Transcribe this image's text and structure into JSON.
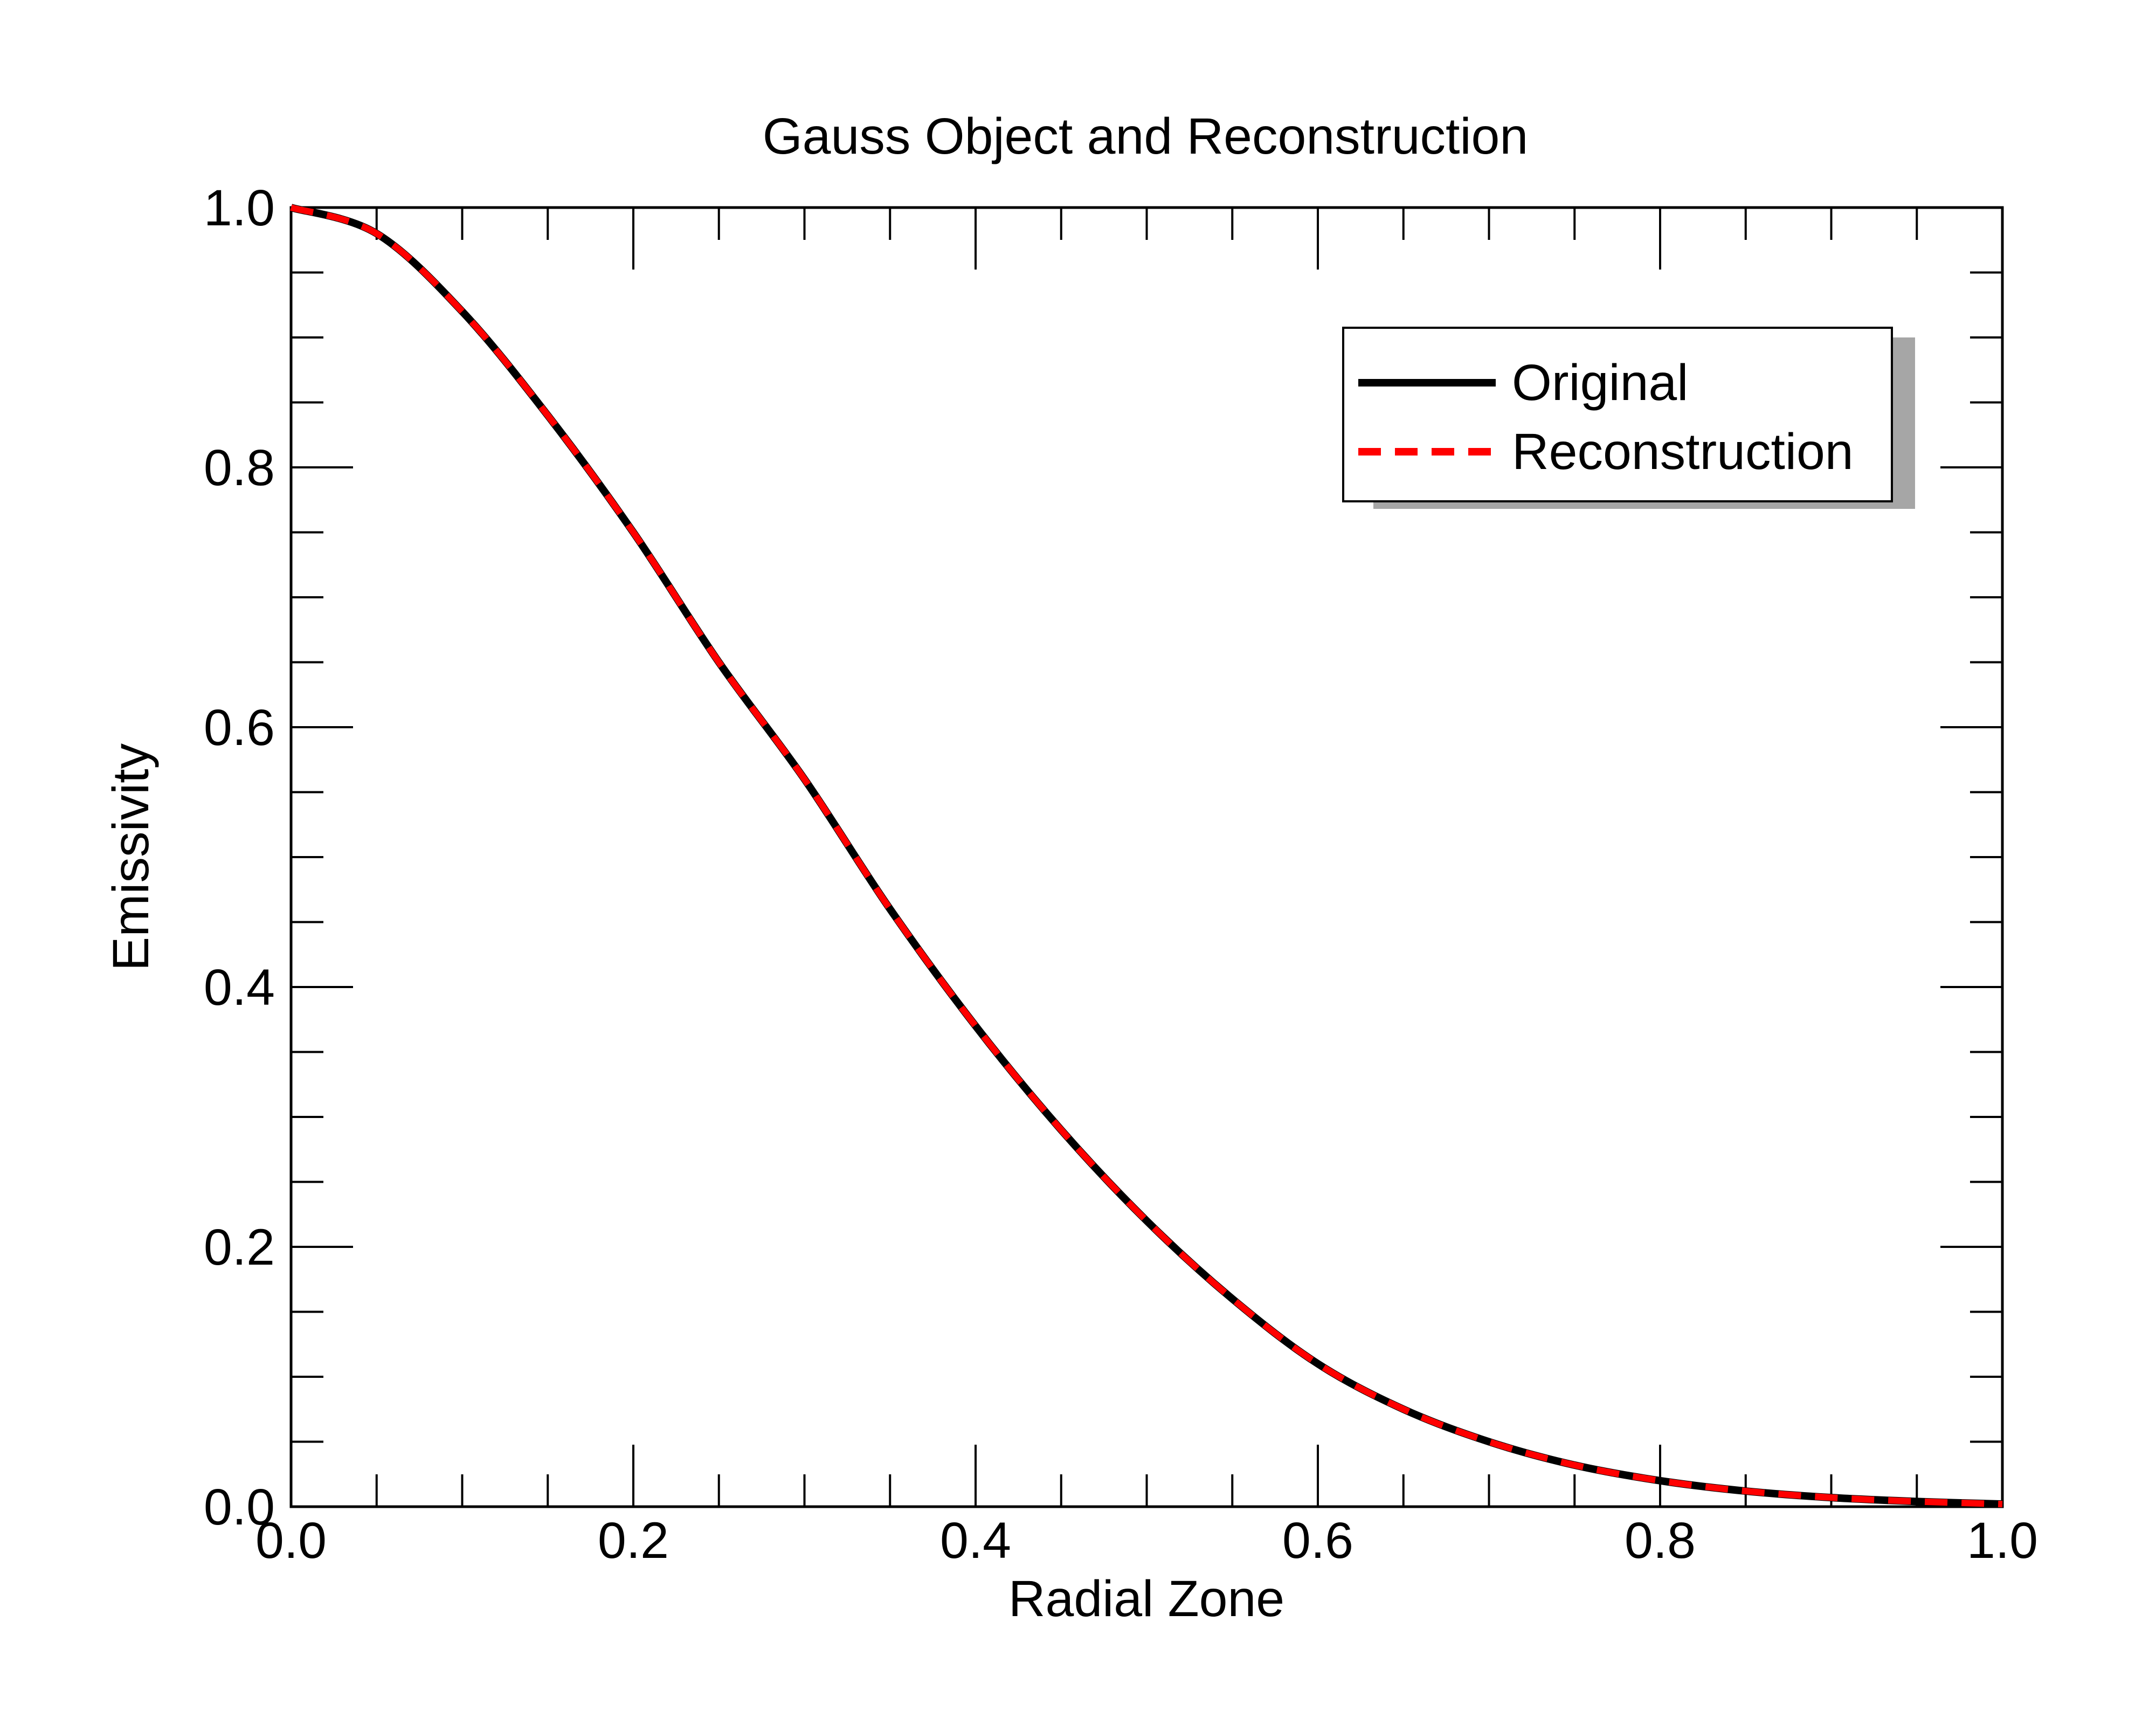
{
  "chart_data": {
    "type": "line",
    "title": "Gauss Object and Reconstruction",
    "xlabel": "Radial Zone",
    "ylabel": "Emissivity",
    "xlim": [
      0.0,
      1.0
    ],
    "ylim": [
      0.0,
      1.0
    ],
    "x_ticks": [
      "0.0",
      "0.2",
      "0.4",
      "0.6",
      "0.8",
      "1.0"
    ],
    "y_ticks": [
      "0.0",
      "0.2",
      "0.4",
      "0.6",
      "0.8",
      "1.0"
    ],
    "grid": false,
    "legend_position": "top-right",
    "x": [
      0.0,
      0.05,
      0.1,
      0.15,
      0.2,
      0.25,
      0.3,
      0.35,
      0.4,
      0.45,
      0.5,
      0.55,
      0.6,
      0.65,
      0.7,
      0.75,
      0.8,
      0.85,
      0.9,
      0.95,
      1.0
    ],
    "series": [
      {
        "name": "Original",
        "color": "#000000",
        "style": "solid",
        "values": [
          1.0,
          0.98,
          0.92,
          0.84,
          0.75,
          0.65,
          0.56,
          0.46,
          0.37,
          0.29,
          0.22,
          0.16,
          0.11,
          0.075,
          0.05,
          0.032,
          0.02,
          0.012,
          0.007,
          0.004,
          0.002
        ]
      },
      {
        "name": "Reconstruction",
        "color": "#ff0000",
        "style": "dashed",
        "values": [
          1.0,
          0.98,
          0.92,
          0.84,
          0.75,
          0.65,
          0.56,
          0.46,
          0.37,
          0.29,
          0.22,
          0.16,
          0.11,
          0.075,
          0.05,
          0.032,
          0.02,
          0.012,
          0.007,
          0.004,
          0.002
        ]
      }
    ]
  }
}
